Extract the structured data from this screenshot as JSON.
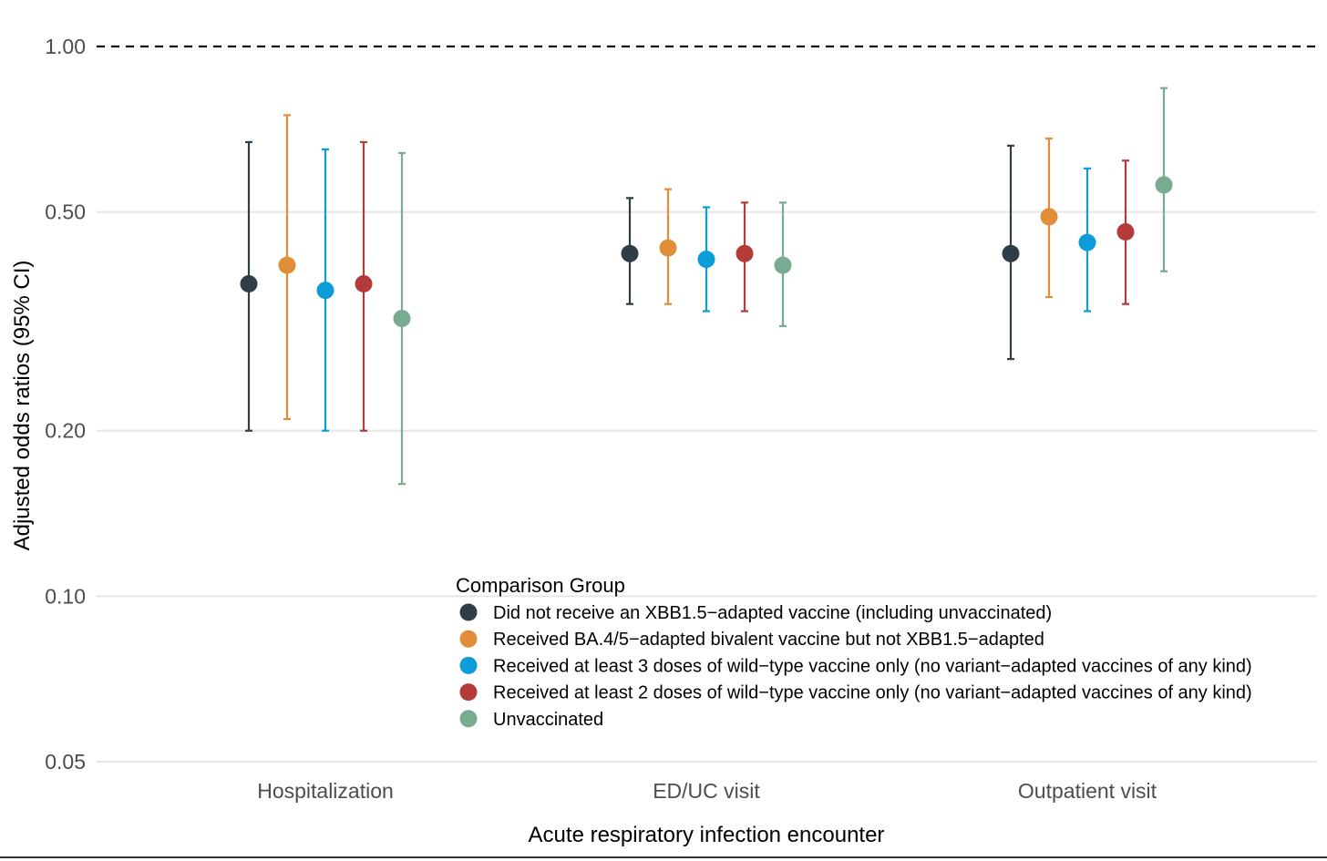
{
  "chart_data": {
    "type": "scatter",
    "subtype": "point-range (log scale)",
    "xlabel": "Acute respiratory infection encounter",
    "ylabel": "Adjusted odds ratios (95% CI)",
    "y_scale": "log10",
    "ylim": [
      0.05,
      1.0
    ],
    "y_ticks": [
      0.05,
      0.1,
      0.2,
      0.5,
      1.0
    ],
    "y_tick_labels": [
      "0.05",
      "0.10",
      "0.20",
      "0.50",
      "1.00"
    ],
    "reference_line": {
      "value": 1.0,
      "style": "dashed"
    },
    "categories": [
      "Hospitalization",
      "ED/UC visit",
      "Outpatient visit"
    ],
    "legend": {
      "title": "Comparison Group",
      "placement": "bottom-center"
    },
    "series": [
      {
        "name": "Did not receive an XBB1.5−adapted vaccine (including unvaccinated)",
        "color": "#2f3e46",
        "estimate": [
          0.37,
          0.42,
          0.42
        ],
        "lower": [
          0.2,
          0.34,
          0.27
        ],
        "upper": [
          0.67,
          0.53,
          0.66
        ]
      },
      {
        "name": "Received BA.4/5−adapted bivalent vaccine but not XBB1.5−adapted",
        "color": "#e08e3a",
        "estimate": [
          0.4,
          0.43,
          0.49
        ],
        "lower": [
          0.21,
          0.34,
          0.35
        ],
        "upper": [
          0.75,
          0.55,
          0.68
        ]
      },
      {
        "name": "Received at least 3 doses of wild−type vaccine only (no variant−adapted vaccines of any kind)",
        "color": "#0c9dd9",
        "estimate": [
          0.36,
          0.41,
          0.44
        ],
        "lower": [
          0.2,
          0.33,
          0.33
        ],
        "upper": [
          0.65,
          0.51,
          0.6
        ]
      },
      {
        "name": "Received at least 2 doses of wild−type vaccine only (no variant−adapted vaccines of any kind)",
        "color": "#b53a3a",
        "estimate": [
          0.37,
          0.42,
          0.46
        ],
        "lower": [
          0.2,
          0.33,
          0.34
        ],
        "upper": [
          0.67,
          0.52,
          0.62
        ]
      },
      {
        "name": "Unvaccinated",
        "color": "#78ab8f",
        "estimate": [
          0.32,
          0.4,
          0.56
        ],
        "lower": [
          0.16,
          0.31,
          0.39
        ],
        "upper": [
          0.64,
          0.52,
          0.84
        ]
      }
    ]
  }
}
